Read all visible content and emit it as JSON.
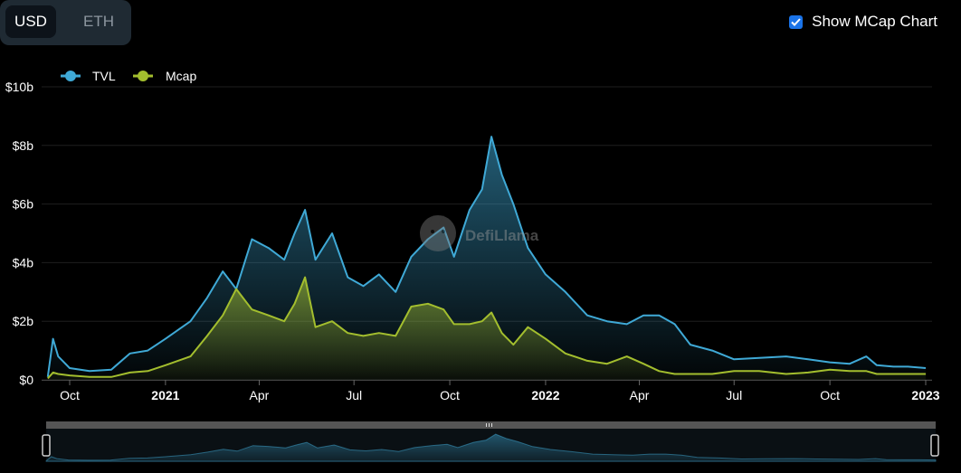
{
  "currency_toggle": {
    "usd_label": "USD",
    "eth_label": "ETH",
    "selected": "USD"
  },
  "mcap_toggle": {
    "label": "Show MCap Chart",
    "checked": true
  },
  "watermark": "DefiLlama",
  "colors": {
    "tvl": "#3fa9d6",
    "mcap": "#a3be2e",
    "background": "#000000",
    "grid": "#1e1e1e"
  },
  "icons": {
    "checkbox": "checkmark-icon",
    "watermark": "llama-logo-icon",
    "slider_grip": "grip-icon"
  },
  "chart_data": {
    "type": "area",
    "legend_position": "top-left",
    "grid": true,
    "ylim": [
      0,
      10
    ],
    "y_unit": "billion USD",
    "y_ticks": [
      "$0",
      "$2b",
      "$4b",
      "$6b",
      "$8b",
      "$10b"
    ],
    "x_ticks": [
      {
        "label": "Oct",
        "date": "2020-10-01",
        "bold": false
      },
      {
        "label": "2021",
        "date": "2021-01-01",
        "bold": true
      },
      {
        "label": "Apr",
        "date": "2021-04-01",
        "bold": false
      },
      {
        "label": "Jul",
        "date": "2021-07-01",
        "bold": false
      },
      {
        "label": "Oct",
        "date": "2021-10-01",
        "bold": false
      },
      {
        "label": "2022",
        "date": "2022-01-01",
        "bold": true
      },
      {
        "label": "Apr",
        "date": "2022-04-01",
        "bold": false
      },
      {
        "label": "Jul",
        "date": "2022-07-01",
        "bold": false
      },
      {
        "label": "Oct",
        "date": "2022-10-01",
        "bold": false
      },
      {
        "label": "2023",
        "date": "2023-01-01",
        "bold": true
      }
    ],
    "x": [
      "2020-09-10",
      "2020-09-15",
      "2020-09-20",
      "2020-10-01",
      "2020-10-20",
      "2020-11-10",
      "2020-11-28",
      "2020-12-15",
      "2021-01-01",
      "2021-01-25",
      "2021-02-10",
      "2021-02-25",
      "2021-03-10",
      "2021-03-25",
      "2021-04-10",
      "2021-04-25",
      "2021-05-05",
      "2021-05-15",
      "2021-05-25",
      "2021-06-10",
      "2021-06-25",
      "2021-07-10",
      "2021-07-25",
      "2021-08-10",
      "2021-08-25",
      "2021-09-10",
      "2021-09-25",
      "2021-10-05",
      "2021-10-20",
      "2021-11-01",
      "2021-11-10",
      "2021-11-20",
      "2021-12-01",
      "2021-12-15",
      "2022-01-01",
      "2022-01-20",
      "2022-02-10",
      "2022-03-01",
      "2022-03-20",
      "2022-04-05",
      "2022-04-20",
      "2022-05-05",
      "2022-05-20",
      "2022-06-10",
      "2022-07-01",
      "2022-07-25",
      "2022-08-20",
      "2022-09-10",
      "2022-10-01",
      "2022-10-20",
      "2022-11-05",
      "2022-11-15",
      "2022-12-01",
      "2022-12-15",
      "2023-01-01"
    ],
    "series": [
      {
        "name": "TVL",
        "values": [
          0.1,
          1.4,
          0.8,
          0.4,
          0.3,
          0.35,
          0.9,
          1.0,
          1.4,
          2.0,
          2.8,
          3.7,
          3.1,
          4.8,
          4.5,
          4.1,
          5.0,
          5.8,
          4.1,
          5.0,
          3.5,
          3.2,
          3.6,
          3.0,
          4.2,
          4.8,
          5.2,
          4.2,
          5.8,
          6.5,
          8.3,
          7.0,
          6.0,
          4.5,
          3.6,
          3.0,
          2.2,
          2.0,
          1.9,
          2.2,
          2.2,
          1.9,
          1.2,
          1.0,
          0.7,
          0.75,
          0.8,
          0.7,
          0.6,
          0.55,
          0.8,
          0.5,
          0.45,
          0.45,
          0.4
        ]
      },
      {
        "name": "Mcap",
        "values": [
          0.05,
          0.25,
          0.2,
          0.15,
          0.1,
          0.1,
          0.25,
          0.3,
          0.5,
          0.8,
          1.5,
          2.2,
          3.1,
          2.4,
          2.2,
          2.0,
          2.6,
          3.5,
          1.8,
          2.0,
          1.6,
          1.5,
          1.6,
          1.5,
          2.5,
          2.6,
          2.4,
          1.9,
          1.9,
          2.0,
          2.3,
          1.6,
          1.2,
          1.8,
          1.4,
          0.9,
          0.65,
          0.55,
          0.8,
          0.55,
          0.3,
          0.2,
          0.2,
          0.2,
          0.3,
          0.3,
          0.2,
          0.25,
          0.35,
          0.3,
          0.3,
          0.2,
          0.2,
          0.2,
          0.2
        ]
      }
    ]
  }
}
